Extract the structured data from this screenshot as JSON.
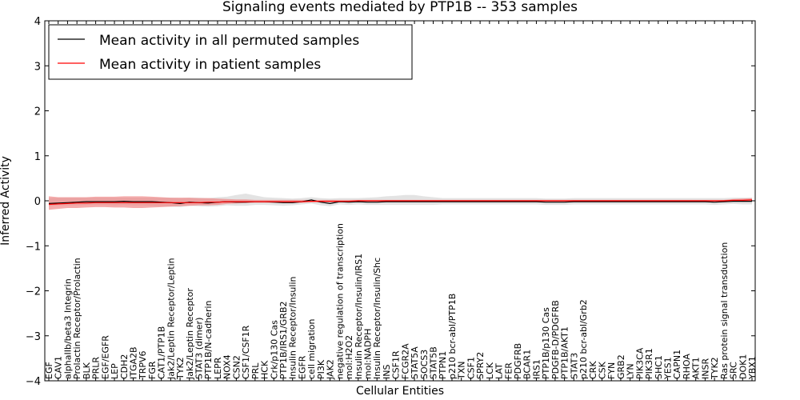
{
  "chart_data": {
    "type": "line",
    "title": "Signaling events mediated by PTP1B -- 353 samples",
    "xlabel": "Cellular Entities",
    "ylabel": "Inferred Activity",
    "ylim": [
      -4,
      4
    ],
    "yticks": [
      "−4",
      "−3",
      "−2",
      "−1",
      "0",
      "1",
      "2",
      "3",
      "4"
    ],
    "categories": [
      "EGF",
      "CAV1",
      "alphaIIb/beta3 Integrin",
      "Prolactin Receptor/Prolactin",
      "BLK",
      "PRLR",
      "EGF/EGFR",
      "LEP",
      "CDH2",
      "ITGA2B",
      "TRPV6",
      "FGR",
      "CAT1/PTP1B",
      "Jak2/Leptin Receptor/Leptin",
      "TYK2",
      "Jak2/Leptin Receptor",
      "STAT3 (dimer)",
      "PTP1B/N-cadherin",
      "LEPR",
      "NOX4",
      "CSN2",
      "CSF1/CSF1R",
      "PRL",
      "HCK",
      "Crk/p130 Cas",
      "PTP1B/IRS1/GRB2",
      "Insulin Receptor/Insulin",
      "EGFR",
      "cell migration",
      "PI3K",
      "JAK2",
      "negative regulation of transcription",
      "mol:H2O2",
      "Insulin Receptor/Insulin/IRS1",
      "mol:NADPH",
      "Insulin Receptor/Insulin/Shc",
      "INS",
      "CSF1R",
      "FCGR2A",
      "STAT5A",
      "SOCS3",
      "STAT5B",
      "PTPN1",
      "p210 bcr-abl/PTP1B",
      "TXN",
      "CSF1",
      "SPRY2",
      "LCK",
      "LAT",
      "FER",
      "PDGFRB",
      "BCAR1",
      "IRS1",
      "PTP1B/p130 Cas",
      "PDGFB-D/PDGFRB",
      "PTP1B/AKT1",
      "STAT3",
      "p210 bcr-abl/Grb2",
      "CRK",
      "CSK",
      "FYN",
      "GRB2",
      "LYN",
      "PIK3CA",
      "PIK3R1",
      "SHC1",
      "YES1",
      "CAPN1",
      "RHOA",
      "AKT1",
      "INSR",
      "TYK2",
      "Ras protein signal transduction",
      "SRC",
      "DOK1",
      "YBX1"
    ],
    "series": [
      {
        "name": "Mean activity in all permuted samples",
        "color": "#000000",
        "band_color": "#d9d9d9",
        "values": [
          -0.06,
          -0.05,
          -0.04,
          -0.03,
          -0.02,
          -0.02,
          -0.02,
          -0.02,
          -0.01,
          -0.02,
          -0.02,
          -0.02,
          -0.03,
          -0.04,
          -0.06,
          -0.03,
          -0.04,
          -0.05,
          -0.03,
          -0.02,
          -0.03,
          -0.03,
          -0.02,
          -0.02,
          -0.03,
          -0.04,
          -0.04,
          -0.02,
          0.02,
          -0.03,
          -0.06,
          -0.02,
          -0.03,
          -0.02,
          -0.03,
          -0.03,
          -0.02,
          -0.02,
          -0.02,
          -0.02,
          -0.02,
          -0.02,
          -0.02,
          -0.02,
          -0.02,
          -0.02,
          -0.02,
          -0.02,
          -0.02,
          -0.02,
          -0.02,
          -0.02,
          -0.02,
          -0.03,
          -0.03,
          -0.03,
          -0.02,
          -0.02,
          -0.02,
          -0.02,
          -0.02,
          -0.02,
          -0.02,
          -0.02,
          -0.02,
          -0.02,
          -0.02,
          -0.02,
          -0.02,
          -0.02,
          -0.02,
          -0.03,
          -0.02,
          -0.01,
          -0.01,
          -0.01
        ],
        "lower": [
          -0.12,
          -0.1,
          -0.1,
          -0.1,
          -0.09,
          -0.09,
          -0.09,
          -0.1,
          -0.09,
          -0.1,
          -0.1,
          -0.11,
          -0.12,
          -0.13,
          -0.14,
          -0.11,
          -0.12,
          -0.13,
          -0.12,
          -0.1,
          -0.11,
          -0.11,
          -0.09,
          -0.09,
          -0.1,
          -0.11,
          -0.1,
          -0.08,
          -0.06,
          -0.1,
          -0.12,
          -0.08,
          -0.09,
          -0.08,
          -0.09,
          -0.09,
          -0.09,
          -0.09,
          -0.09,
          -0.09,
          -0.09,
          -0.09,
          -0.08,
          -0.08,
          -0.08,
          -0.08,
          -0.08,
          -0.08,
          -0.08,
          -0.08,
          -0.08,
          -0.08,
          -0.08,
          -0.09,
          -0.09,
          -0.09,
          -0.08,
          -0.08,
          -0.08,
          -0.08,
          -0.08,
          -0.08,
          -0.08,
          -0.08,
          -0.08,
          -0.08,
          -0.08,
          -0.08,
          -0.08,
          -0.08,
          -0.08,
          -0.09,
          -0.08,
          -0.07,
          -0.08,
          -0.08
        ],
        "upper": [
          0.06,
          0.07,
          0.07,
          0.07,
          0.07,
          0.07,
          0.07,
          0.07,
          0.07,
          0.07,
          0.07,
          0.07,
          0.07,
          0.07,
          0.06,
          0.07,
          0.07,
          0.06,
          0.08,
          0.09,
          0.13,
          0.16,
          0.12,
          0.08,
          0.07,
          0.06,
          0.05,
          0.06,
          0.08,
          0.06,
          0.05,
          0.06,
          0.06,
          0.06,
          0.07,
          0.08,
          0.1,
          0.11,
          0.13,
          0.13,
          0.1,
          0.08,
          0.06,
          0.06,
          0.06,
          0.06,
          0.06,
          0.06,
          0.06,
          0.06,
          0.06,
          0.06,
          0.06,
          0.05,
          0.05,
          0.05,
          0.06,
          0.06,
          0.06,
          0.06,
          0.06,
          0.06,
          0.06,
          0.06,
          0.06,
          0.06,
          0.06,
          0.06,
          0.06,
          0.06,
          0.06,
          0.06,
          0.06,
          0.07,
          0.07,
          0.07
        ]
      },
      {
        "name": "Mean activity in patient samples",
        "color": "#ff0000",
        "band_color": "#f08080",
        "values": [
          -0.08,
          -0.07,
          -0.06,
          -0.05,
          -0.05,
          -0.04,
          -0.04,
          -0.04,
          -0.04,
          -0.04,
          -0.04,
          -0.04,
          -0.04,
          -0.04,
          -0.04,
          -0.04,
          -0.04,
          -0.03,
          -0.03,
          -0.02,
          -0.02,
          -0.02,
          -0.02,
          -0.02,
          -0.02,
          -0.02,
          -0.02,
          -0.02,
          -0.01,
          -0.01,
          -0.01,
          -0.01,
          -0.01,
          0.0,
          0.0,
          0.0,
          0.0,
          0.0,
          0.0,
          0.0,
          0.0,
          0.0,
          0.0,
          0.0,
          0.0,
          0.0,
          0.0,
          0.0,
          0.0,
          0.0,
          0.0,
          0.0,
          0.0,
          0.0,
          0.0,
          0.0,
          0.0,
          0.0,
          0.0,
          0.0,
          0.0,
          0.0,
          0.0,
          0.0,
          0.0,
          0.0,
          0.0,
          0.0,
          0.0,
          0.0,
          0.0,
          0.0,
          0.0,
          0.01,
          0.01,
          0.02
        ],
        "lower": [
          -0.2,
          -0.18,
          -0.16,
          -0.16,
          -0.15,
          -0.14,
          -0.14,
          -0.15,
          -0.15,
          -0.16,
          -0.16,
          -0.15,
          -0.14,
          -0.13,
          -0.12,
          -0.11,
          -0.1,
          -0.1,
          -0.09,
          -0.07,
          -0.06,
          -0.05,
          -0.04,
          -0.04,
          -0.04,
          -0.04,
          -0.04,
          -0.04,
          -0.03,
          -0.03,
          -0.03,
          -0.03,
          -0.03,
          -0.02,
          -0.02,
          -0.02,
          -0.02,
          -0.02,
          -0.02,
          -0.02,
          -0.02,
          -0.02,
          -0.02,
          -0.02,
          -0.02,
          -0.02,
          -0.02,
          -0.02,
          -0.02,
          -0.02,
          -0.02,
          -0.02,
          -0.02,
          -0.02,
          -0.02,
          -0.02,
          -0.02,
          -0.02,
          -0.02,
          -0.02,
          -0.02,
          -0.02,
          -0.02,
          -0.02,
          -0.02,
          -0.02,
          -0.02,
          -0.02,
          -0.02,
          -0.02,
          -0.02,
          -0.02,
          -0.02,
          -0.01,
          -0.02,
          -0.02
        ],
        "upper": [
          0.1,
          0.08,
          0.08,
          0.08,
          0.08,
          0.09,
          0.09,
          0.09,
          0.1,
          0.1,
          0.1,
          0.09,
          0.08,
          0.07,
          0.07,
          0.07,
          0.06,
          0.06,
          0.05,
          0.04,
          0.03,
          0.03,
          0.02,
          0.02,
          0.02,
          0.02,
          0.02,
          0.02,
          0.02,
          0.02,
          0.02,
          0.02,
          0.02,
          0.02,
          0.02,
          0.02,
          0.02,
          0.02,
          0.02,
          0.02,
          0.02,
          0.02,
          0.02,
          0.02,
          0.02,
          0.02,
          0.02,
          0.02,
          0.02,
          0.02,
          0.02,
          0.02,
          0.02,
          0.02,
          0.02,
          0.02,
          0.02,
          0.02,
          0.02,
          0.02,
          0.02,
          0.02,
          0.02,
          0.02,
          0.02,
          0.02,
          0.02,
          0.02,
          0.02,
          0.02,
          0.02,
          0.02,
          0.02,
          0.04,
          0.05,
          0.06
        ]
      }
    ],
    "legend": {
      "position": "top-left",
      "entries": [
        "Mean activity in all permuted samples",
        "Mean activity in patient samples"
      ]
    },
    "grid": false
  }
}
